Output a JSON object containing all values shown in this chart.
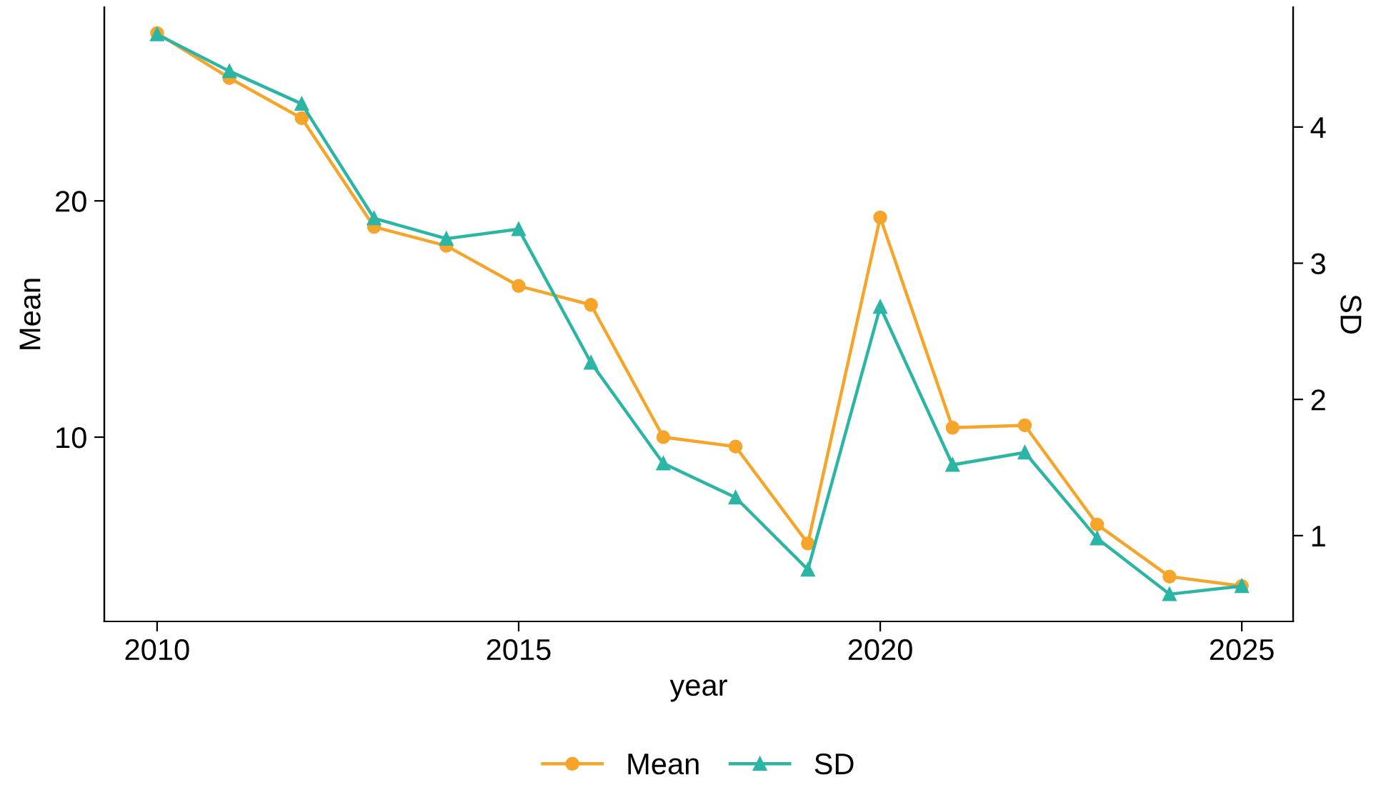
{
  "chart_data": {
    "type": "line",
    "xlabel": "year",
    "ylabel": "Mean",
    "y2label": "SD",
    "x": [
      2010,
      2011,
      2012,
      2013,
      2014,
      2015,
      2016,
      2017,
      2018,
      2019,
      2020,
      2021,
      2022,
      2023,
      2024,
      2025
    ],
    "series": [
      {
        "name": "Mean",
        "color": "#f5a52a",
        "marker": "circle",
        "values": [
          27.1,
          25.2,
          23.5,
          18.9,
          18.1,
          16.4,
          15.6,
          10.0,
          9.6,
          5.5,
          19.3,
          10.4,
          10.5,
          6.3,
          4.1,
          3.7
        ]
      },
      {
        "name": "SD",
        "color": "#2bb5a5",
        "marker": "triangle",
        "axis": "y2",
        "values": [
          4.68,
          4.41,
          4.17,
          3.33,
          3.18,
          3.25,
          2.27,
          1.53,
          1.28,
          0.75,
          2.68,
          1.52,
          1.61,
          0.98,
          0.57,
          0.63
        ]
      }
    ],
    "xlim": [
      2009.27,
      2025.71
    ],
    "xticks": [
      2010,
      2015,
      2020,
      2025
    ],
    "ylim": [
      2.2,
      28.2
    ],
    "yticks": [
      10,
      20
    ],
    "y2lim": [
      0.37,
      4.88
    ],
    "y2ticks": [
      1,
      2,
      3,
      4
    ],
    "grid": false,
    "legend": "bottom",
    "line_style": "solid"
  }
}
